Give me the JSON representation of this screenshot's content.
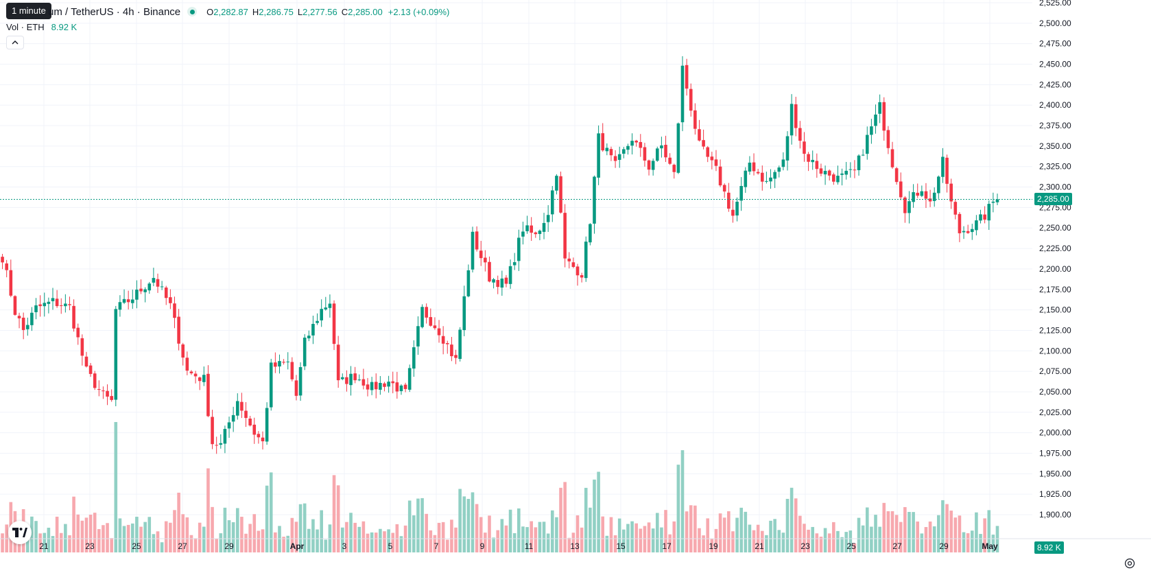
{
  "header": {
    "tooltip": "1 minute",
    "title": "um / TetherUS · 4h · Binance",
    "open_label": "O",
    "open": "2,282.87",
    "high_label": "H",
    "high": "2,286.75",
    "low_label": "L",
    "low": "2,277.56",
    "close_label": "C",
    "close": "2,285.00",
    "change": "+2.13 (+0.09%)"
  },
  "volume_legend": {
    "label": "Vol · ETH",
    "value": "8.92 K"
  },
  "badges": {
    "price": "2,285.00",
    "volume": "8.92 K"
  },
  "colors": {
    "up": "#089981",
    "down": "#f23645",
    "up_volume": "#91d0c4",
    "down_volume": "#f7a8ae",
    "price_line": "#089981"
  },
  "icons": {
    "collapse": "chevron-up-icon",
    "logo": "tradingview-logo-icon",
    "settings": "settings-gear-icon"
  },
  "chart_data": {
    "type": "candlestick",
    "symbol": "ETH/USDT",
    "interval": "4h",
    "exchange": "Binance",
    "ylim": [
      1900,
      2525
    ],
    "y_ticks": [
      "1,900.00",
      "1,925.00",
      "1,950.00",
      "1,975.00",
      "2,000.00",
      "2,025.00",
      "2,050.00",
      "2,075.00",
      "2,100.00",
      "2,125.00",
      "2,150.00",
      "2,175.00",
      "2,200.00",
      "2,225.00",
      "2,250.00",
      "2,275.00",
      "2,300.00",
      "2,325.00",
      "2,350.00",
      "2,375.00",
      "2,400.00",
      "2,425.00",
      "2,450.00",
      "2,475.00",
      "2,500.00",
      "2,525.00"
    ],
    "x_ticks": [
      "21",
      "23",
      "25",
      "27",
      "29",
      "Apr",
      "3",
      "5",
      "7",
      "9",
      "11",
      "13",
      "15",
      "17",
      "19",
      "21",
      "23",
      "25",
      "27",
      "29",
      "May"
    ],
    "last_price": 2285.0,
    "anchors": [
      [
        0,
        2215
      ],
      [
        3,
        2148
      ],
      [
        5,
        2125
      ],
      [
        8,
        2152
      ],
      [
        12,
        2160
      ],
      [
        16,
        2153
      ],
      [
        20,
        2075
      ],
      [
        24,
        2045
      ],
      [
        26,
        2038
      ],
      [
        27,
        2150
      ],
      [
        31,
        2165
      ],
      [
        36,
        2190
      ],
      [
        40,
        2155
      ],
      [
        44,
        2075
      ],
      [
        48,
        2065
      ],
      [
        50,
        1988
      ],
      [
        52,
        1985
      ],
      [
        56,
        2040
      ],
      [
        60,
        2000
      ],
      [
        62,
        1988
      ],
      [
        64,
        2080
      ],
      [
        68,
        2085
      ],
      [
        70,
        2045
      ],
      [
        72,
        2110
      ],
      [
        76,
        2150
      ],
      [
        78,
        2160
      ],
      [
        80,
        2060
      ],
      [
        84,
        2070
      ],
      [
        88,
        2055
      ],
      [
        92,
        2063
      ],
      [
        96,
        2048
      ],
      [
        100,
        2150
      ],
      [
        104,
        2125
      ],
      [
        108,
        2088
      ],
      [
        112,
        2240
      ],
      [
        116,
        2190
      ],
      [
        120,
        2180
      ],
      [
        124,
        2250
      ],
      [
        127,
        2240
      ],
      [
        130,
        2270
      ],
      [
        132,
        2320
      ],
      [
        134,
        2210
      ],
      [
        138,
        2195
      ],
      [
        140,
        2260
      ],
      [
        142,
        2360
      ],
      [
        146,
        2325
      ],
      [
        150,
        2360
      ],
      [
        154,
        2325
      ],
      [
        157,
        2350
      ],
      [
        160,
        2315
      ],
      [
        162,
        2445
      ],
      [
        166,
        2350
      ],
      [
        170,
        2320
      ],
      [
        174,
        2265
      ],
      [
        178,
        2330
      ],
      [
        182,
        2305
      ],
      [
        186,
        2330
      ],
      [
        188,
        2398
      ],
      [
        191,
        2340
      ],
      [
        195,
        2320
      ],
      [
        199,
        2310
      ],
      [
        203,
        2318
      ],
      [
        206,
        2360
      ],
      [
        209,
        2398
      ],
      [
        212,
        2330
      ],
      [
        215,
        2275
      ],
      [
        219,
        2300
      ],
      [
        221,
        2280
      ],
      [
        224,
        2330
      ],
      [
        226,
        2280
      ],
      [
        228,
        2245
      ],
      [
        232,
        2255
      ],
      [
        234,
        2265
      ],
      [
        236,
        2282
      ],
      [
        237,
        2285
      ]
    ]
  }
}
